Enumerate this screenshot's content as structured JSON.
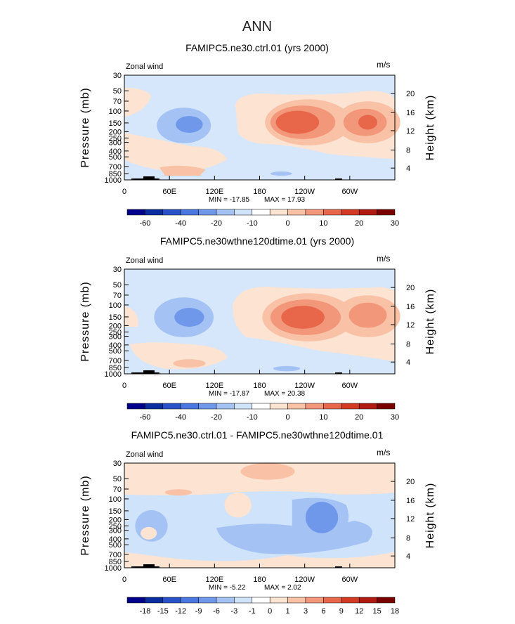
{
  "page_title": "ANN",
  "chart_data": [
    {
      "type": "contour",
      "title": "FAMIPC5.ne30.ctrl.01 (yrs 2000)",
      "left_label": "Zonal wind",
      "right_label": "m/s",
      "ylabel": "Pressure (mb)",
      "y2label": "Height (km)",
      "x_ticks": [
        "0",
        "60E",
        "120E",
        "180",
        "120W",
        "60W"
      ],
      "y_ticks": [
        "30",
        "50",
        "70",
        "100",
        "150",
        "200",
        "250",
        "300",
        "400",
        "500",
        "700",
        "850",
        "1000"
      ],
      "y2_ticks": [
        "20",
        "16",
        "12",
        "8",
        "4"
      ],
      "min_label": "MIN = -17.85",
      "max_label": "MAX = 17.93",
      "colorbar_labels": [
        "-60",
        "-40",
        "-20",
        "-10",
        "0",
        "10",
        "20",
        "30"
      ],
      "colorbar_colors": [
        "#00008a",
        "#0a2ea0",
        "#2a52c8",
        "#4a78e0",
        "#7098ea",
        "#a4c2f4",
        "#cfe3fa",
        "#ffffff",
        "#fde3d2",
        "#f9c2a6",
        "#f3977a",
        "#e8664a",
        "#d33a24",
        "#b01c12",
        "#7a0000"
      ],
      "fields": [
        {
          "level": "neg1",
          "color": "#cfe3fa",
          "blobs": [
            [
              155,
              5,
              80,
              85
            ],
            [
              60,
              30,
              45,
              48
            ],
            [
              215,
              15,
              40,
              60
            ],
            [
              235,
              5,
              15,
              40
            ],
            [
              300,
              25,
              40,
              45
            ],
            [
              325,
              45,
              15,
              20
            ],
            [
              35,
              0,
              25,
              25
            ],
            [
              110,
              20,
              30,
              50
            ],
            [
              30,
              15,
              20,
              30
            ]
          ]
        },
        {
          "level": "neg2",
          "color": "#a4c2f4",
          "blobs": [
            [
              55,
              54,
              24,
              48
            ],
            [
              120,
              12,
              20,
              50
            ],
            [
              265,
              8,
              25,
              45
            ],
            [
              290,
              15,
              10,
              20
            ]
          ]
        },
        {
          "level": "neg3",
          "color": "#7098ea",
          "blobs": [
            [
              82,
              50,
              8,
              24
            ],
            [
              140,
              12,
              15,
              35
            ],
            [
              215,
              9,
              12,
              25
            ],
            [
              235,
              70,
              10,
              14
            ]
          ]
        },
        {
          "level": "neg4",
          "color": "#4a78e0",
          "blobs": [
            [
              140,
              9,
              8,
              25
            ],
            [
              275,
              70,
              8,
              12
            ],
            [
              55,
              18,
              8,
              15
            ],
            [
              310,
              46,
              10,
              14
            ],
            [
              90,
              160,
              10,
              14
            ],
            [
              230,
              22,
              15,
              30
            ],
            [
              250,
              17,
              10,
              15
            ]
          ]
        },
        {
          "level": "neg5",
          "color": "#2a52c8",
          "blobs": [
            [
              143,
              5,
              5,
              10
            ]
          ]
        }
      ],
      "fields_summary": "Jet cores near 150 mb at 120W and 60W; easterlies over Maritime Continent and 180",
      "data_extent": {
        "lon": [
          0,
          360
        ],
        "pressure_mb": [
          1000,
          30
        ]
      }
    },
    {
      "type": "contour",
      "title": "FAMIPC5.ne30wthne120dtime.01 (yrs 2000)",
      "left_label": "Zonal wind",
      "right_label": "m/s",
      "ylabel": "Pressure (mb)",
      "y2label": "Height (km)",
      "x_ticks": [
        "0",
        "60E",
        "120E",
        "180",
        "120W",
        "60W"
      ],
      "y_ticks": [
        "30",
        "50",
        "70",
        "100",
        "150",
        "200",
        "250",
        "300",
        "400",
        "500",
        "700",
        "850",
        "1000"
      ],
      "y2_ticks": [
        "20",
        "16",
        "12",
        "8",
        "4"
      ],
      "min_label": "MIN = -17.87",
      "max_label": "MAX = 20.38",
      "colorbar_labels": [
        "-60",
        "-40",
        "-20",
        "-10",
        "0",
        "10",
        "20",
        "30"
      ],
      "colorbar_colors": [
        "#00008a",
        "#0a2ea0",
        "#2a52c8",
        "#4a78e0",
        "#7098ea",
        "#a4c2f4",
        "#cfe3fa",
        "#ffffff",
        "#fde3d2",
        "#f9c2a6",
        "#f3977a",
        "#e8664a",
        "#d33a24",
        "#b01c12",
        "#7a0000"
      ],
      "data_extent": {
        "lon": [
          0,
          360
        ],
        "pressure_mb": [
          1000,
          30
        ]
      }
    },
    {
      "type": "contour",
      "title": "FAMIPC5.ne30.ctrl.01 - FAMIPC5.ne30wthne120dtime.01",
      "left_label": "Zonal wind",
      "right_label": "m/s",
      "ylabel": "Pressure (mb)",
      "y2label": "Height (km)",
      "x_ticks": [
        "0",
        "60E",
        "120E",
        "180",
        "120W",
        "60W"
      ],
      "y_ticks": [
        "30",
        "50",
        "70",
        "100",
        "150",
        "200",
        "250",
        "300",
        "400",
        "500",
        "700",
        "850",
        "1000"
      ],
      "y2_ticks": [
        "20",
        "16",
        "12",
        "8",
        "4"
      ],
      "min_label": "MIN = -5.22",
      "max_label": "MAX = 2.02",
      "colorbar_labels": [
        "-18",
        "-15",
        "-12",
        "-9",
        "-6",
        "-3",
        "-1",
        "0",
        "1",
        "3",
        "6",
        "9",
        "12",
        "15",
        "18"
      ],
      "colorbar_colors": [
        "#00008a",
        "#0a2ea0",
        "#2a52c8",
        "#4a78e0",
        "#7098ea",
        "#a4c2f4",
        "#cfe3fa",
        "#ffffff",
        "#fde3d2",
        "#f9c2a6",
        "#f3977a",
        "#e8664a",
        "#d33a24",
        "#b01c12",
        "#7a0000"
      ],
      "data_extent": {
        "lon": [
          0,
          360
        ],
        "pressure_mb": [
          1000,
          30
        ]
      }
    }
  ]
}
